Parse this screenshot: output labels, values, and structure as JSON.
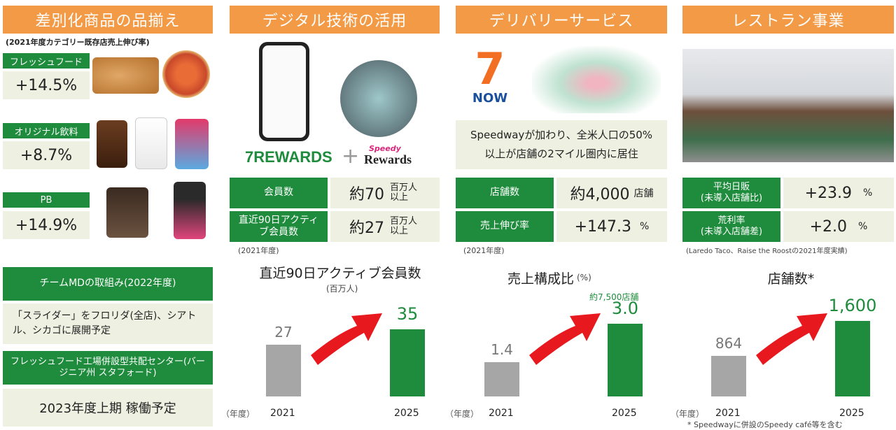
{
  "headers": {
    "col1": "差別化商品の品揃え",
    "col2": "デジタル技術の活用",
    "col3": "デリバリーサービス",
    "col4": "レストラン事業"
  },
  "col1": {
    "subtitle": "(2021年度カテゴリー既存店売上伸び率)",
    "categories": [
      {
        "label": "フレッシュフード",
        "value": "+14.5%"
      },
      {
        "label": "オリジナル飲料",
        "value": "+8.7%"
      },
      {
        "label": "PB",
        "value": "+14.9%"
      }
    ],
    "team_md": {
      "title": "チームMDの取組み(2022年度)",
      "slider_text": "「スライダー」をフロリダ(全店)、シアトル、シカゴに展開予定",
      "center_title": "フレッシュフード工場併設型共配センター(バージニア州 スタフォード)",
      "center_schedule": "2023年度上期 稼働予定"
    }
  },
  "col2": {
    "logo_left": "7REWARDS",
    "logo_plus": "+",
    "logo_right_top": "Speedy",
    "logo_right_bottom": "Rewards",
    "rows": [
      {
        "label": "会員数",
        "value": "約70",
        "unit": "百万人以上"
      },
      {
        "label": "直近90日アクティブ会員数",
        "value": "約27",
        "unit": "百万人以上"
      }
    ],
    "footnote": "(2021年度)",
    "chart_title": "直近90日アクティブ会員数",
    "chart_unit": "(百万人)",
    "year_label": "（年度）"
  },
  "col3": {
    "logo_text": "NOW",
    "info_text": "Speedwayが加わり、全米人口の50%以上が店舗の2マイル圏内に居住",
    "rows": [
      {
        "label": "店舗数",
        "value": "約4,000",
        "unit": "店舗"
      },
      {
        "label": "売上伸び率",
        "value": "+147.3",
        "unit": "%"
      }
    ],
    "footnote": "(2021年度)",
    "chart_title": "売上構成比",
    "chart_unit": "(%)",
    "chart_annotation": "約7,500店舗",
    "year_label": "（年度）"
  },
  "col4": {
    "rows": [
      {
        "label": "平均日販\n(未導入店舗比)",
        "value": "+23.9",
        "unit": "%"
      },
      {
        "label": "荒利率\n(未導入店舗差)",
        "value": "+2.0",
        "unit": "%"
      }
    ],
    "footnote": "(Laredo Taco、Raise the Roostの2021年度実績)",
    "chart_title": "店舗数*",
    "year_label": "（年度）",
    "bottom_note": "* Speedwayに併設のSpeedy café等を含む"
  },
  "chart_data": [
    {
      "type": "bar",
      "title": "直近90日アクティブ会員数",
      "ylabel": "(百万人)",
      "categories": [
        "2021",
        "2025"
      ],
      "values": [
        27,
        35
      ],
      "value_labels": [
        "27",
        "35"
      ],
      "colors": [
        "#A6A6A6",
        "#1E8C3C"
      ]
    },
    {
      "type": "bar",
      "title": "売上構成比",
      "ylabel": "(%)",
      "categories": [
        "2021",
        "2025"
      ],
      "values": [
        1.4,
        3.0
      ],
      "value_labels": [
        "1.4",
        "3.0"
      ],
      "colors": [
        "#A6A6A6",
        "#1E8C3C"
      ]
    },
    {
      "type": "bar",
      "title": "店舗数*",
      "categories": [
        "2021",
        "2025"
      ],
      "values": [
        864,
        1600
      ],
      "value_labels": [
        "864",
        "1,600"
      ],
      "colors": [
        "#A6A6A6",
        "#1E8C3C"
      ]
    }
  ],
  "colors": {
    "orange": "#F39A46",
    "green": "#1E8C3C",
    "beige": "#EEF0E1",
    "gray_bar": "#A6A6A6",
    "arrow_red": "#E8191E"
  }
}
